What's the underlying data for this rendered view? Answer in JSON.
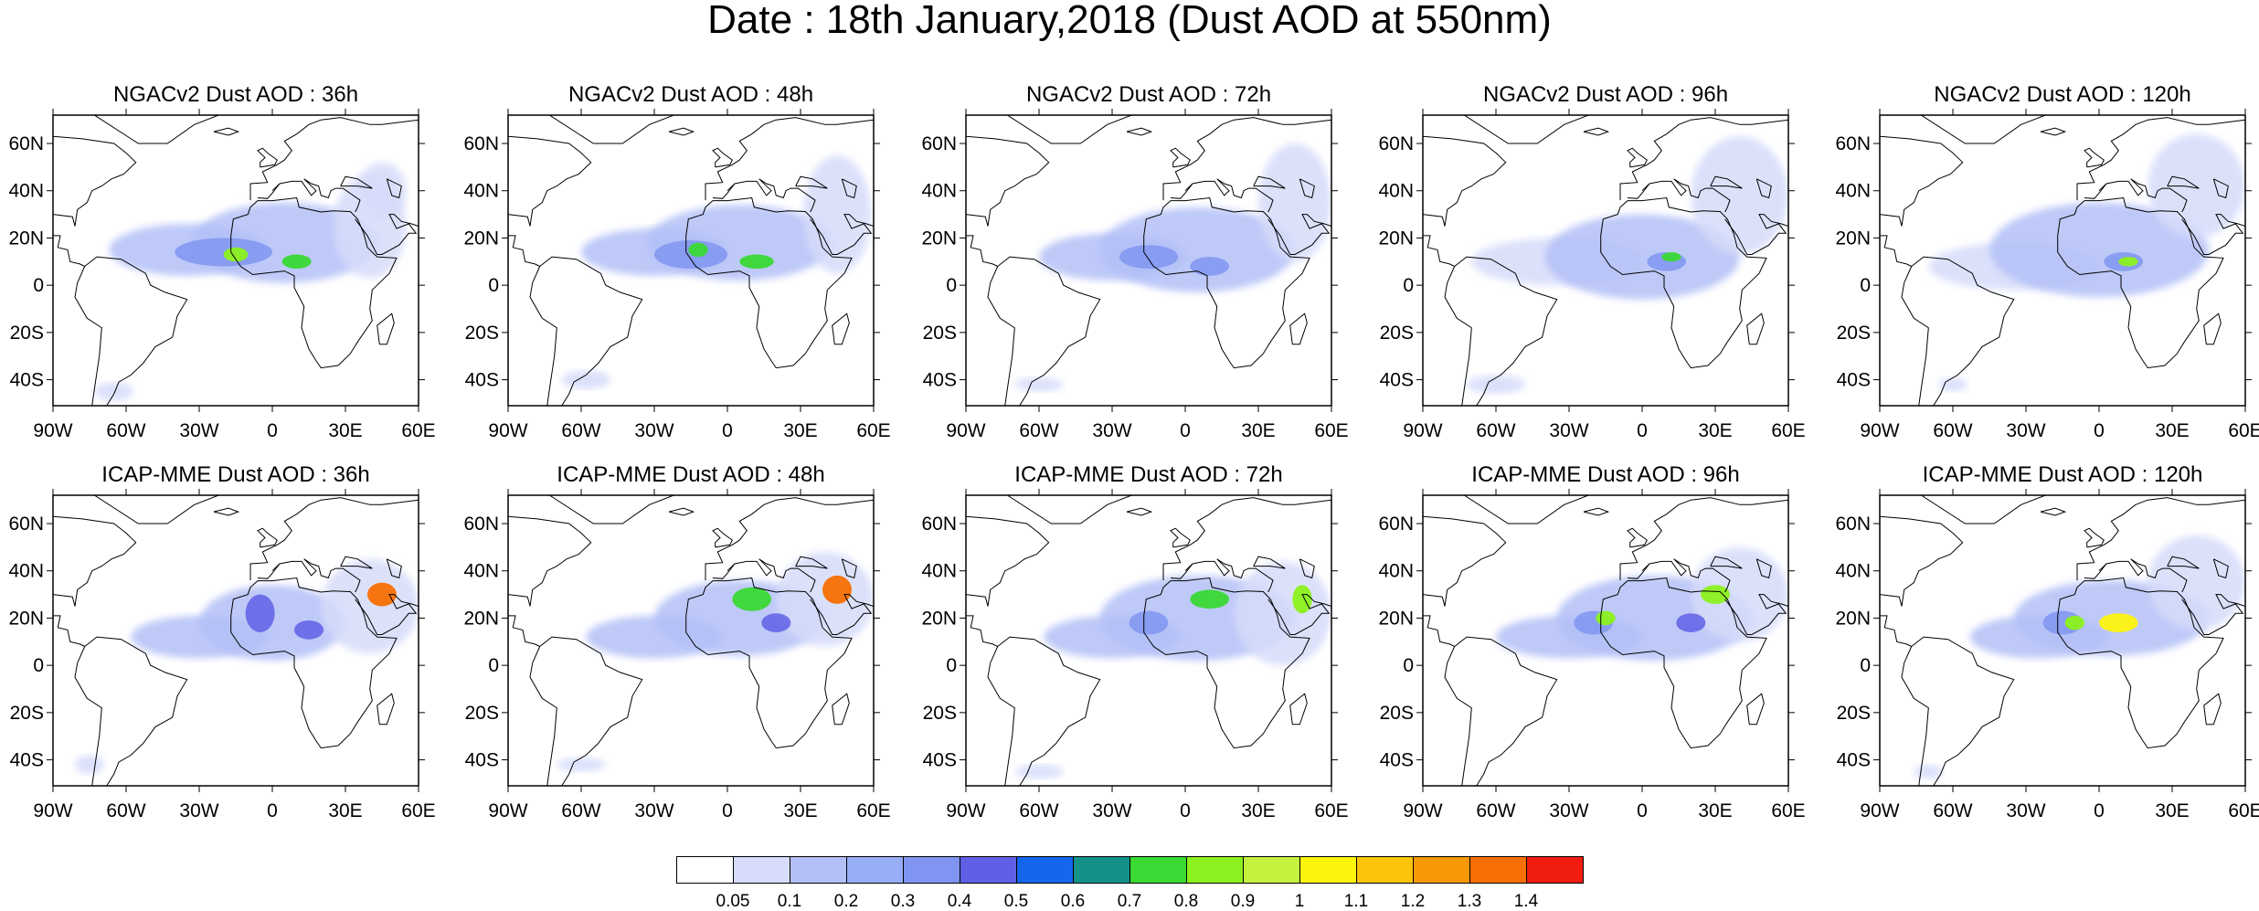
{
  "title": "Date : 18th January,2018 (Dust AOD at 550nm)",
  "longitude_ticks": [
    "90W",
    "60W",
    "30W",
    "0",
    "30E",
    "60E"
  ],
  "latitude_ticks": [
    "60N",
    "40N",
    "20N",
    "0",
    "20S",
    "40S"
  ],
  "panels": [
    {
      "model": "NGACv2",
      "lead": "36h",
      "title": "NGACv2 Dust AOD : 36h"
    },
    {
      "model": "NGACv2",
      "lead": "48h",
      "title": "NGACv2 Dust AOD : 48h"
    },
    {
      "model": "NGACv2",
      "lead": "72h",
      "title": "NGACv2 Dust AOD : 72h"
    },
    {
      "model": "NGACv2",
      "lead": "96h",
      "title": "NGACv2 Dust AOD : 96h"
    },
    {
      "model": "NGACv2",
      "lead": "120h",
      "title": "NGACv2 Dust AOD : 120h"
    },
    {
      "model": "ICAP-MME",
      "lead": "36h",
      "title": "ICAP-MME Dust AOD : 36h"
    },
    {
      "model": "ICAP-MME",
      "lead": "48h",
      "title": "ICAP-MME Dust AOD : 48h"
    },
    {
      "model": "ICAP-MME",
      "lead": "72h",
      "title": "ICAP-MME Dust AOD : 72h"
    },
    {
      "model": "ICAP-MME",
      "lead": "96h",
      "title": "ICAP-MME Dust AOD : 96h"
    },
    {
      "model": "ICAP-MME",
      "lead": "120h",
      "title": "ICAP-MME Dust AOD : 120h"
    }
  ],
  "colorbar": {
    "labels": [
      "0.05",
      "0.1",
      "0.2",
      "0.3",
      "0.4",
      "0.5",
      "0.6",
      "0.7",
      "0.8",
      "0.9",
      "1",
      "1.1",
      "1.2",
      "1.3",
      "1.4"
    ],
    "colors": [
      "#ffffff",
      "#d6dcfa",
      "#b3c0f7",
      "#95aef5",
      "#8095f1",
      "#6060e6",
      "#1565ed",
      "#14928a",
      "#3ad934",
      "#8cf11e",
      "#c4f23f",
      "#fdf40e",
      "#fbc40a",
      "#f99805",
      "#f76f04",
      "#f21d11"
    ]
  }
}
